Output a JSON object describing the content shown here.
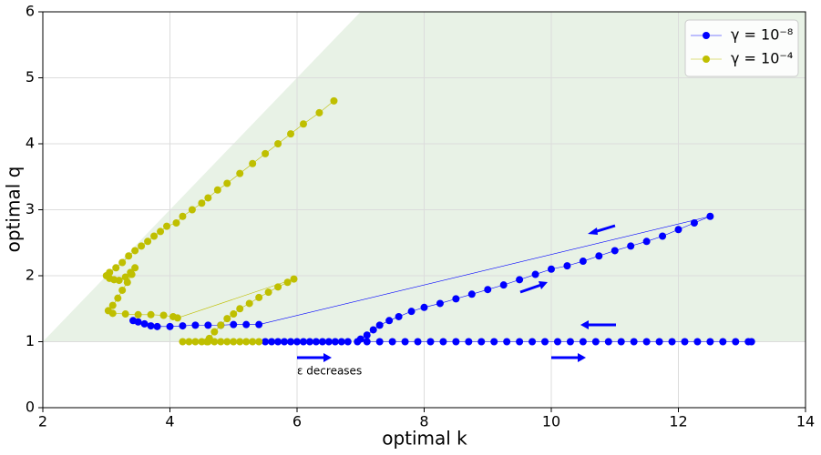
{
  "chart_data": {
    "type": "line",
    "xlabel": "optimal k",
    "ylabel": "optimal q",
    "xlim": [
      2,
      14
    ],
    "ylim": [
      0,
      6
    ],
    "xticks": [
      2,
      4,
      6,
      8,
      10,
      12,
      14
    ],
    "yticks": [
      0,
      1,
      2,
      3,
      4,
      5,
      6
    ],
    "grid": true,
    "legend": "upper right",
    "markers": true,
    "shaded_region": {
      "color": "#e8f2e6",
      "vertices": [
        [
          2,
          1
        ],
        [
          7,
          6
        ],
        [
          14,
          6
        ],
        [
          14,
          1
        ]
      ]
    },
    "annotations": [
      {
        "text": "ε decreases",
        "x": 6,
        "y": 0.55,
        "color": "#0000ff"
      }
    ],
    "series": [
      {
        "name": "γ = 10⁻⁸",
        "color": "#0000ff",
        "x": [
          5.5,
          5.6,
          5.7,
          5.8,
          5.9,
          6.0,
          6.1,
          6.2,
          6.3,
          6.4,
          6.5,
          6.6,
          6.7,
          6.8,
          null,
          3.42,
          3.5,
          3.6,
          3.7,
          3.8,
          4.0,
          4.2,
          4.4,
          4.6,
          4.8,
          5.0,
          5.2,
          5.4,
          12.5,
          12.25,
          12.0,
          11.75,
          11.5,
          11.25,
          11.0,
          10.75,
          10.5,
          10.25,
          10.0,
          9.75,
          9.5,
          9.25,
          9.0,
          8.75,
          8.5,
          8.25,
          8.0,
          7.8,
          7.6,
          7.45,
          7.3,
          7.2,
          7.1,
          7.0,
          6.95,
          7.1,
          7.3,
          7.5,
          7.7,
          7.9,
          8.1,
          8.3,
          8.5,
          8.7,
          8.9,
          9.1,
          9.3,
          9.5,
          9.7,
          9.9,
          10.1,
          10.3,
          10.5,
          10.7,
          10.9,
          11.1,
          11.3,
          11.5,
          11.7,
          11.9,
          12.1,
          12.3,
          12.5,
          12.7,
          12.9,
          13.1,
          13.15
        ],
        "values": [
          1,
          1,
          1,
          1,
          1,
          1,
          1,
          1,
          1,
          1,
          1,
          1,
          1,
          1,
          null,
          1.32,
          1.3,
          1.27,
          1.24,
          1.23,
          1.23,
          1.24,
          1.25,
          1.25,
          1.25,
          1.26,
          1.26,
          1.26,
          2.9,
          2.8,
          2.7,
          2.6,
          2.52,
          2.45,
          2.38,
          2.3,
          2.22,
          2.15,
          2.1,
          2.02,
          1.94,
          1.86,
          1.79,
          1.72,
          1.65,
          1.58,
          1.52,
          1.46,
          1.38,
          1.32,
          1.25,
          1.18,
          1.1,
          1.04,
          1.0,
          1,
          1,
          1,
          1,
          1,
          1,
          1,
          1,
          1,
          1,
          1,
          1,
          1,
          1,
          1,
          1,
          1,
          1,
          1,
          1,
          1,
          1,
          1,
          1,
          1,
          1,
          1,
          1,
          1,
          1,
          1,
          1
        ]
      },
      {
        "name": "γ = 10⁻⁴",
        "color": "#bfbf00",
        "x": [
          6.58,
          6.35,
          6.1,
          5.9,
          5.7,
          5.5,
          5.3,
          5.1,
          4.9,
          4.75,
          4.6,
          4.5,
          4.35,
          4.2,
          4.1,
          3.95,
          3.85,
          3.75,
          3.65,
          3.55,
          3.45,
          3.35,
          3.25,
          3.15,
          3.05,
          3.0,
          3.05,
          3.12,
          3.2,
          3.3,
          3.38,
          3.45,
          3.4,
          3.33,
          3.25,
          3.18,
          3.1,
          3.03,
          3.1,
          3.3,
          3.5,
          3.7,
          3.9,
          4.05,
          4.12,
          5.95,
          5.85,
          5.7,
          5.55,
          5.4,
          5.25,
          5.1,
          5.0,
          4.9,
          4.8,
          4.7,
          4.62,
          4.58,
          null,
          4.2,
          4.3,
          4.4,
          4.5,
          4.6,
          4.7,
          4.8,
          4.9,
          5.0,
          5.1,
          5.2,
          5.3,
          5.4
        ],
        "values": [
          4.65,
          4.47,
          4.3,
          4.15,
          4.0,
          3.85,
          3.7,
          3.55,
          3.4,
          3.3,
          3.18,
          3.1,
          3.0,
          2.9,
          2.8,
          2.75,
          2.67,
          2.6,
          2.52,
          2.45,
          2.38,
          2.3,
          2.2,
          2.12,
          2.05,
          2.0,
          1.96,
          1.94,
          1.93,
          1.98,
          2.05,
          2.12,
          2.02,
          1.9,
          1.78,
          1.66,
          1.55,
          1.47,
          1.43,
          1.42,
          1.41,
          1.41,
          1.4,
          1.38,
          1.36,
          1.95,
          1.9,
          1.83,
          1.75,
          1.67,
          1.58,
          1.5,
          1.42,
          1.35,
          1.25,
          1.15,
          1.05,
          1.0,
          null,
          1,
          1,
          1,
          1,
          1,
          1,
          1,
          1,
          1,
          1,
          1,
          1,
          1
        ]
      }
    ]
  }
}
